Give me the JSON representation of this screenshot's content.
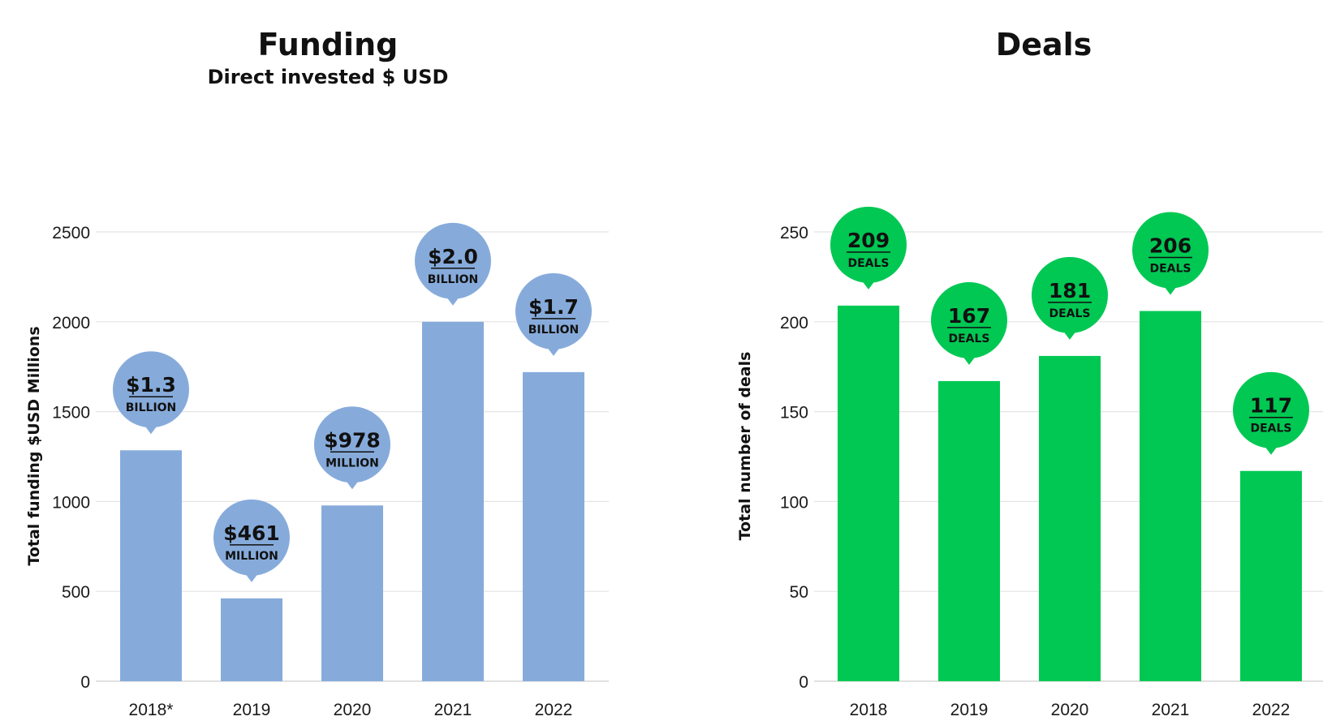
{
  "chart_data": [
    {
      "type": "bar",
      "title": "Funding",
      "subtitle": "Direct invested $ USD",
      "ylabel": "Total funding $USD Millions",
      "xlabel": "",
      "categories": [
        "2018*",
        "2019",
        "2020",
        "2021",
        "2022"
      ],
      "values": [
        1285,
        461,
        978,
        2000,
        1720
      ],
      "yticks": [
        "0",
        "500",
        "1000",
        "1500",
        "2000",
        "2500"
      ],
      "ylim": [
        0,
        2500
      ],
      "grid": true,
      "bar_color": "#86abdb",
      "annotations": [
        {
          "value": "$1.3",
          "unit": "BILLION"
        },
        {
          "value": "$461",
          "unit": "MILLION"
        },
        {
          "value": "$978",
          "unit": "MILLION"
        },
        {
          "value": "$2.0",
          "unit": "BILLION"
        },
        {
          "value": "$1.7",
          "unit": "BILLION"
        }
      ]
    },
    {
      "type": "bar",
      "title": "Deals",
      "ylabel": "Total number of deals",
      "xlabel": "",
      "categories": [
        "2018",
        "2019",
        "2020",
        "2021",
        "2022"
      ],
      "values": [
        209,
        167,
        181,
        206,
        117
      ],
      "yticks": [
        "0",
        "50",
        "100",
        "150",
        "200",
        "250"
      ],
      "ylim": [
        0,
        250
      ],
      "grid": true,
      "bar_color": "#00c853",
      "annotations": [
        {
          "value": "209",
          "unit": "DEALS"
        },
        {
          "value": "167",
          "unit": "DEALS"
        },
        {
          "value": "181",
          "unit": "DEALS"
        },
        {
          "value": "206",
          "unit": "DEALS"
        },
        {
          "value": "117",
          "unit": "DEALS"
        }
      ]
    }
  ]
}
